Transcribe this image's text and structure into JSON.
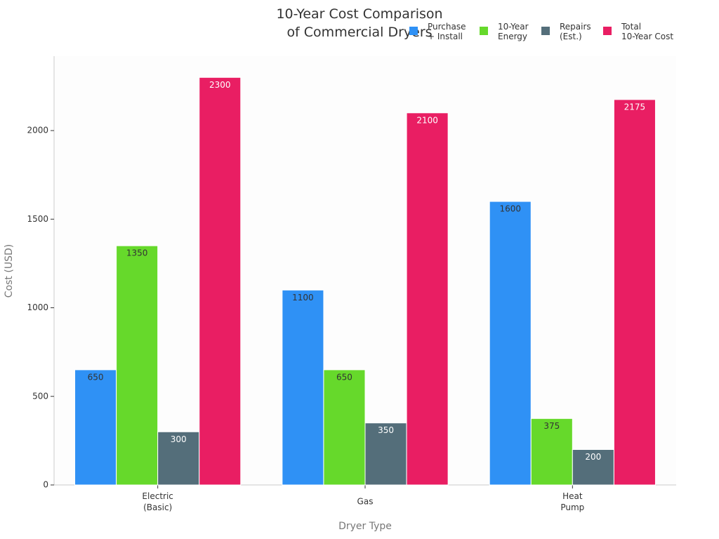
{
  "chart_data": {
    "type": "bar",
    "title": "10-Year Cost Comparison\nof Commercial Dryers",
    "x_label": "Dryer Type",
    "y_label": "Cost (USD)",
    "categories": [
      "Electric\n(Basic)",
      "Gas",
      "Heat\nPump"
    ],
    "series": [
      {
        "name": "Purchase\n+ Install",
        "color": "#2f91f5",
        "label_color": "#333333",
        "values": [
          650,
          1100,
          1600
        ]
      },
      {
        "name": "10-Year\nEnergy",
        "color": "#66d92b",
        "label_color": "#333333",
        "values": [
          1350,
          650,
          375
        ]
      },
      {
        "name": "Repairs\n(Est.)",
        "color": "#546e7a",
        "label_color": "#ffffff",
        "values": [
          300,
          350,
          200
        ]
      },
      {
        "name": "Total\n10-Year Cost",
        "color": "#e91e63",
        "label_color": "#ffffff",
        "values": [
          2300,
          2100,
          2175
        ]
      }
    ],
    "ylim": [
      0,
      2420
    ],
    "yticks": [
      0,
      500,
      1000,
      1500,
      2000
    ],
    "legend": "top-right",
    "grid": false
  }
}
